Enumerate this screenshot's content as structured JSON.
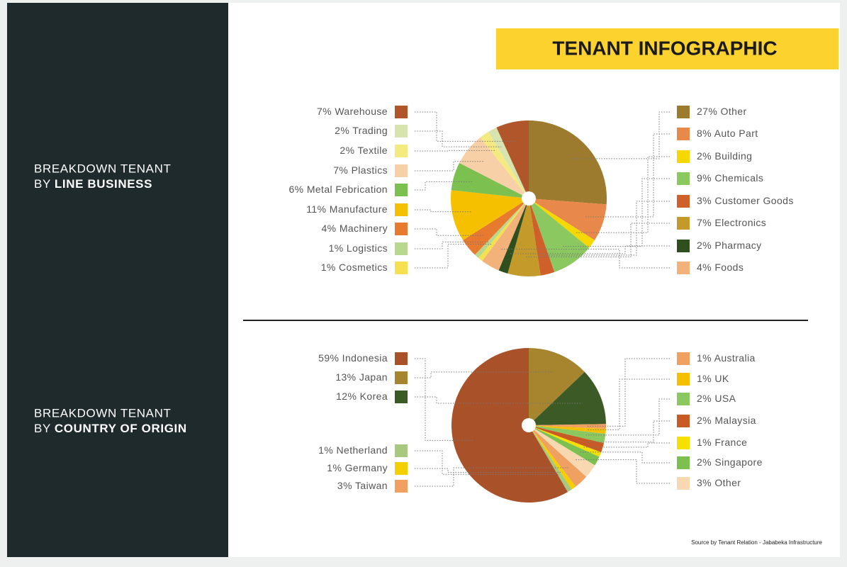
{
  "title": "TENANT INFOGRAPHIC",
  "source": "Source by Tenant Relation - Jababeka Infrastructure",
  "chart_data": [
    {
      "type": "pie",
      "subtitle": "BREAKDOWN TENANT",
      "subtitle_by": "BY",
      "subtitle_topic": "LINE BUSINESS",
      "categories": [
        "Other",
        "Auto Part",
        "Building",
        "Chemicals",
        "Customer Goods",
        "Electronics",
        "Pharmacy",
        "Foods",
        "Cosmetics",
        "Logistics",
        "Machinery",
        "Manufacture",
        "Metal Febrication",
        "Plastics",
        "Textile",
        "Trading",
        "Warehouse"
      ],
      "values": [
        27,
        8,
        2,
        9,
        3,
        7,
        2,
        4,
        1,
        1,
        4,
        11,
        6,
        7,
        2,
        2,
        7
      ],
      "value_labels": [
        "27%",
        "8%",
        "2%",
        "9%",
        "3%",
        "7%",
        "2%",
        "4%",
        "1%",
        "1%",
        "4%",
        "11%",
        "6%",
        "7%",
        "2%",
        "2%",
        "7%"
      ],
      "colors": [
        "#9c7a2e",
        "#e8884a",
        "#f5d800",
        "#8cc860",
        "#d0602a",
        "#c49a2a",
        "#2f4f1f",
        "#f2b27a",
        "#f5e050",
        "#b8d890",
        "#e87a30",
        "#f5c000",
        "#7cc050",
        "#f8d0a8",
        "#f5ea80",
        "#d8e4b0",
        "#b0562a"
      ]
    },
    {
      "type": "pie",
      "subtitle": "BREAKDOWN TENANT",
      "subtitle_by": "BY",
      "subtitle_topic": "COUNTRY OF ORIGIN",
      "categories": [
        "Japan",
        "Korea",
        "Australia",
        "UK",
        "USA",
        "Malaysia",
        "France",
        "Singapore",
        "Other",
        "Taiwan",
        "Germany",
        "Netherland",
        "Indonesia"
      ],
      "values": [
        13,
        12,
        1,
        1,
        2,
        2,
        1,
        2,
        3,
        3,
        1,
        1,
        59
      ],
      "value_labels": [
        "13%",
        "12%",
        "1%",
        "1%",
        "2%",
        "2%",
        "1%",
        "2%",
        "3%",
        "3%",
        "1%",
        "1%",
        "59%"
      ],
      "colors": [
        "#a6852e",
        "#3b5a25",
        "#f0a060",
        "#f5c000",
        "#8cc860",
        "#c85a25",
        "#f5e000",
        "#7cc050",
        "#f8d8b0",
        "#f0a060",
        "#f5d000",
        "#a8c880",
        "#a9522a"
      ]
    }
  ]
}
